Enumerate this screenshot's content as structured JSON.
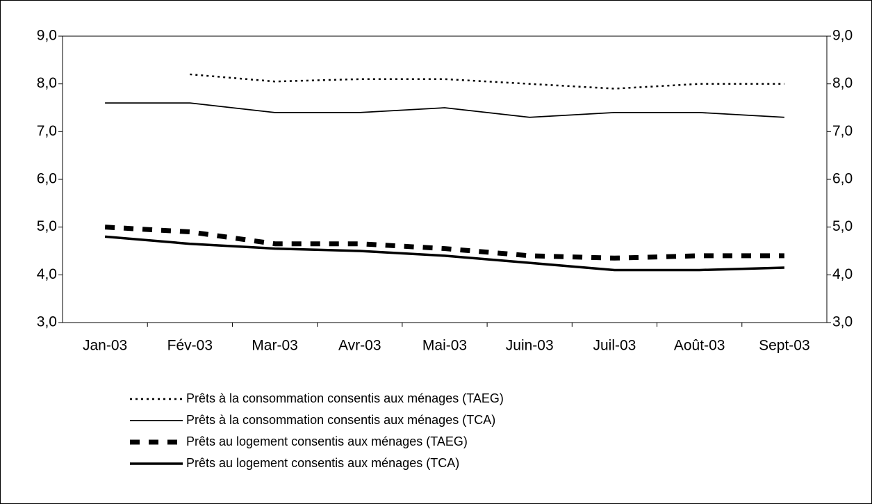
{
  "chart_data": {
    "type": "line",
    "categories": [
      "Jan-03",
      "Fév-03",
      "Mar-03",
      "Avr-03",
      "Mai-03",
      "Juin-03",
      "Juil-03",
      "Août-03",
      "Sept-03"
    ],
    "series": [
      {
        "name": "Prêts à la consommation consentis aux ménages (TAEG)",
        "color": "#000000",
        "line_style": "dotted",
        "values": [
          null,
          8.2,
          8.05,
          8.1,
          8.1,
          8.0,
          7.9,
          8.0,
          8.0
        ]
      },
      {
        "name": "Prêts à la consommation consentis aux ménages (TCA)",
        "color": "#000000",
        "line_style": "solid-thin",
        "values": [
          7.6,
          7.6,
          7.4,
          7.4,
          7.5,
          7.3,
          7.4,
          7.4,
          7.3
        ]
      },
      {
        "name": "Prêts au logement consentis aux ménages (TAEG)",
        "color": "#000000",
        "line_style": "dashed-thick",
        "values": [
          5.0,
          4.9,
          4.65,
          4.65,
          4.55,
          4.4,
          4.35,
          4.4,
          4.4
        ]
      },
      {
        "name": "Prêts au logement consentis aux ménages (TCA)",
        "color": "#000000",
        "line_style": "solid-thick",
        "values": [
          4.8,
          4.65,
          4.55,
          4.5,
          4.4,
          4.25,
          4.1,
          4.1,
          4.15
        ]
      }
    ],
    "ylim": [
      3,
      9
    ],
    "yticks": [
      {
        "value": 3,
        "label": "3,0"
      },
      {
        "value": 4,
        "label": "4,0"
      },
      {
        "value": 5,
        "label": "5,0"
      },
      {
        "value": 6,
        "label": "6,0"
      },
      {
        "value": 7,
        "label": "7,0"
      },
      {
        "value": 8,
        "label": "8,0"
      },
      {
        "value": 9,
        "label": "9,0"
      }
    ],
    "y2lim": [
      3,
      9
    ],
    "y2ticks": [
      {
        "value": 3,
        "label": "3,0"
      },
      {
        "value": 4,
        "label": "4,0"
      },
      {
        "value": 5,
        "label": "5,0"
      },
      {
        "value": 6,
        "label": "6,0"
      },
      {
        "value": 7,
        "label": "7,0"
      },
      {
        "value": 8,
        "label": "8,0"
      },
      {
        "value": 9,
        "label": "9,0"
      }
    ],
    "grid": false,
    "legend": "bottom-left"
  }
}
